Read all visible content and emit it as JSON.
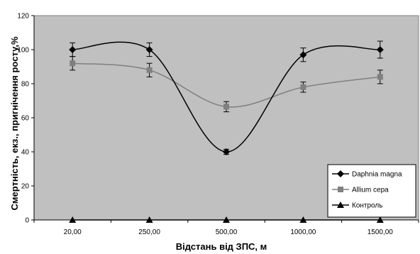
{
  "chart_data": {
    "type": "line",
    "title": "",
    "xlabel": "Відстань від ЗПС, м",
    "ylabel": "Смертність, екз., пригнічення росту,%",
    "categories": [
      "20,00",
      "250,00",
      "500,00",
      "1000,00",
      "1500,00"
    ],
    "ylim": [
      0,
      120
    ],
    "yticks": [
      0,
      20,
      40,
      60,
      80,
      100,
      120
    ],
    "grid": false,
    "plot_background": "#c0c0c0",
    "legend_position": "bottom-right",
    "series": [
      {
        "name": "Daphnia magna",
        "values": [
          100,
          100,
          40,
          97,
          100
        ],
        "errors": [
          4,
          4,
          1.5,
          4,
          5
        ],
        "color": "#000000",
        "marker": "diamond"
      },
      {
        "name": "Allium cepa",
        "values": [
          92,
          88,
          66.5,
          78,
          84
        ],
        "errors": [
          4,
          4,
          3,
          3,
          4
        ],
        "color": "#7f7f7f",
        "marker": "square"
      },
      {
        "name": "Контроль",
        "values": [
          0,
          0,
          0,
          0,
          0
        ],
        "errors": [
          0,
          0,
          0,
          0,
          0
        ],
        "color": "#000000",
        "marker": "triangle"
      }
    ]
  }
}
